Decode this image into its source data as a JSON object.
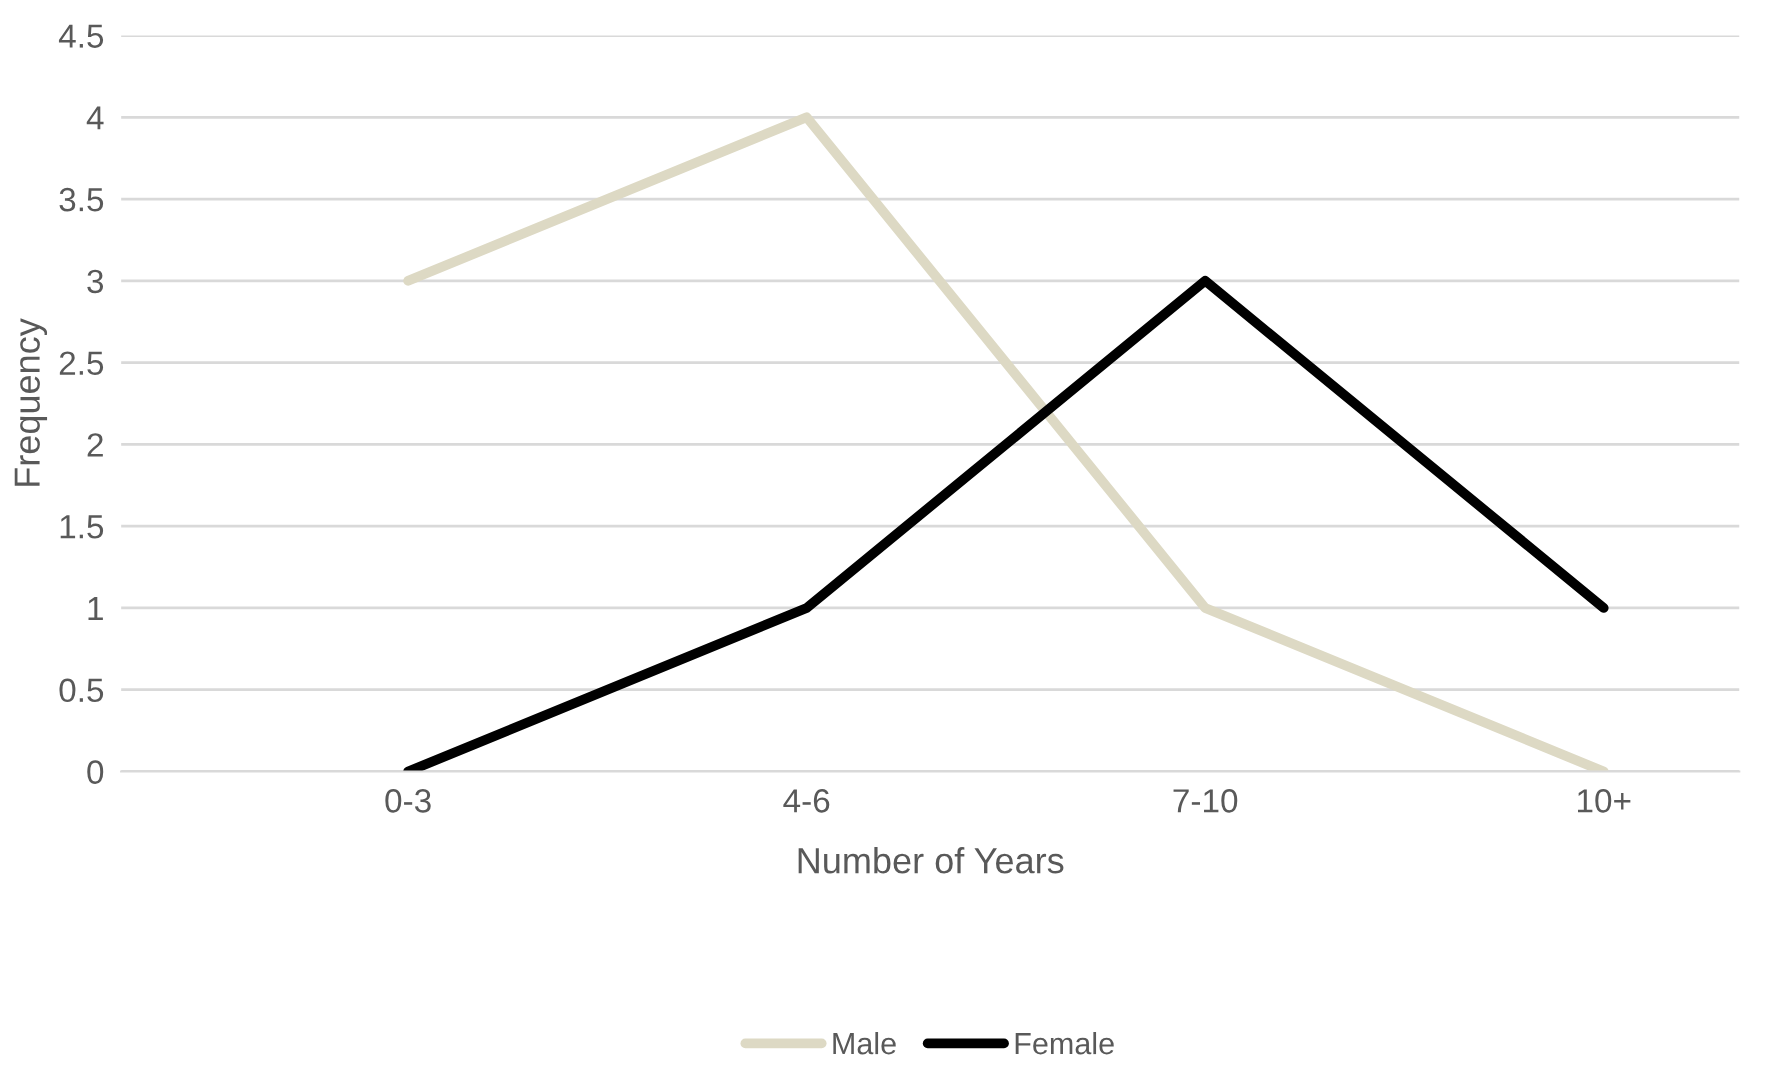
{
  "chart_data": {
    "type": "line",
    "xlabel": "Number of Years",
    "ylabel": "Frequency",
    "categories": [
      "0-3",
      "4-6",
      "7-10",
      "10+"
    ],
    "series": [
      {
        "name": "Male",
        "color": "#ddd9c4",
        "values": [
          3,
          4,
          1,
          0
        ]
      },
      {
        "name": "Female",
        "color": "#000000",
        "values": [
          0,
          1,
          3,
          1
        ]
      }
    ],
    "ylim": [
      0,
      4.5
    ],
    "yticks": [
      0,
      0.5,
      1,
      1.5,
      2,
      2.5,
      3,
      3.5,
      4,
      4.5
    ],
    "grid": "y",
    "legend": "bottom",
    "marker": "none",
    "line_style": "solid"
  }
}
